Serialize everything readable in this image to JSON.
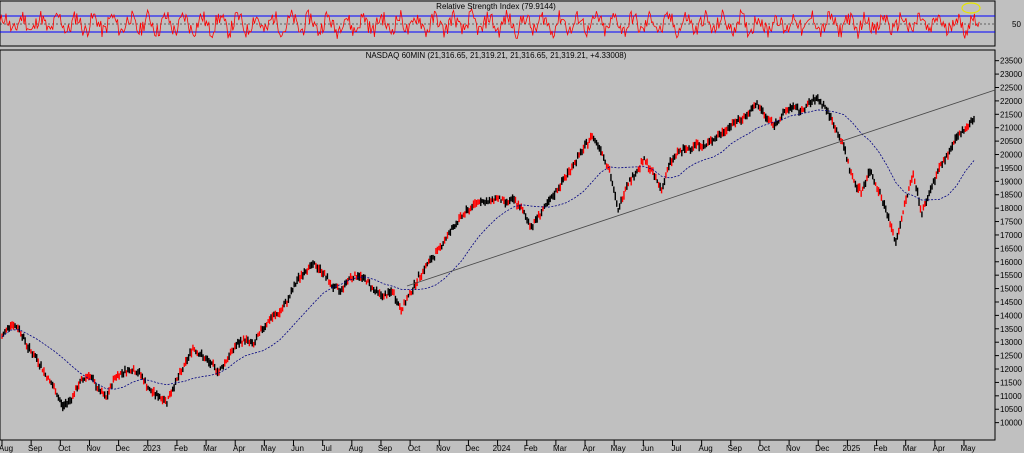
{
  "rsi_panel": {
    "title": "Relative Strength Index (79.9144)",
    "level_label": "50",
    "upper_level": 70,
    "lower_level": 30,
    "line_color": "#ff0000",
    "band_color": "#0000ff",
    "highlight_color": "#e6e600"
  },
  "price_panel": {
    "title": "NASDAQ 60MIN  (21,316.65, 21,319.21, 21,316.65, 21,319.21, +4.33008)",
    "bar_color": "#000000",
    "down_color": "#ff0000",
    "ma_color": "#000080",
    "trendline_color": "#444444"
  },
  "chart_data": {
    "type": "line",
    "ylim": [
      9800,
      23600
    ],
    "yticks": [
      10000,
      10500,
      11000,
      11500,
      12000,
      12500,
      13000,
      13500,
      14000,
      14500,
      15000,
      15500,
      16000,
      16500,
      17000,
      17500,
      18000,
      18500,
      19000,
      19500,
      20000,
      20500,
      21000,
      21500,
      22000,
      22500,
      23000,
      23500
    ],
    "xticks": [
      "Aug",
      "Sep",
      "Oct",
      "Nov",
      "Dec",
      "2023",
      "Feb",
      "Mar",
      "Apr",
      "May",
      "Jun",
      "Jul",
      "Aug",
      "Sep",
      "Oct",
      "Nov",
      "Dec",
      "2024",
      "Feb",
      "Mar",
      "Apr",
      "May",
      "Jun",
      "Jul",
      "Aug",
      "Sep",
      "Oct",
      "Nov",
      "Dec",
      "2025",
      "Feb",
      "Mar",
      "Apr",
      "May"
    ],
    "series": [
      {
        "values": [
          13200,
          13700,
          13500,
          12800,
          12400,
          11800,
          11300,
          10600,
          10900,
          11500,
          11800,
          11300,
          10900,
          11700,
          11900,
          12000,
          11800,
          11200,
          11000,
          10800,
          11500,
          12100,
          12800,
          12500,
          12200,
          11900,
          12400,
          12900,
          13100,
          12900,
          13500,
          13900,
          14100,
          14600,
          15300,
          15700,
          15900,
          15600,
          15100,
          14900,
          15400,
          15500,
          15300,
          14900,
          14700,
          14900,
          14200,
          14800,
          15400,
          15900,
          16300,
          16800,
          17300,
          17700,
          18000,
          18300,
          18200,
          18400,
          18200,
          18300,
          17900,
          17300,
          17800,
          18200,
          18700,
          19200,
          19700,
          20200,
          20700,
          20200,
          19400,
          17900,
          18900,
          19300,
          19800,
          19300,
          18700,
          19700,
          20100,
          20200,
          20400,
          20300,
          20600,
          20800,
          21100,
          21300,
          21500,
          21900,
          21400,
          21100,
          21500,
          21800,
          21600,
          21900,
          22100,
          21700,
          21000,
          20300,
          19100,
          18600,
          19400,
          18700,
          17800,
          16700,
          18100,
          19300,
          17800,
          18700,
          19500,
          20000,
          20600,
          21000,
          21319
        ]
      }
    ]
  }
}
